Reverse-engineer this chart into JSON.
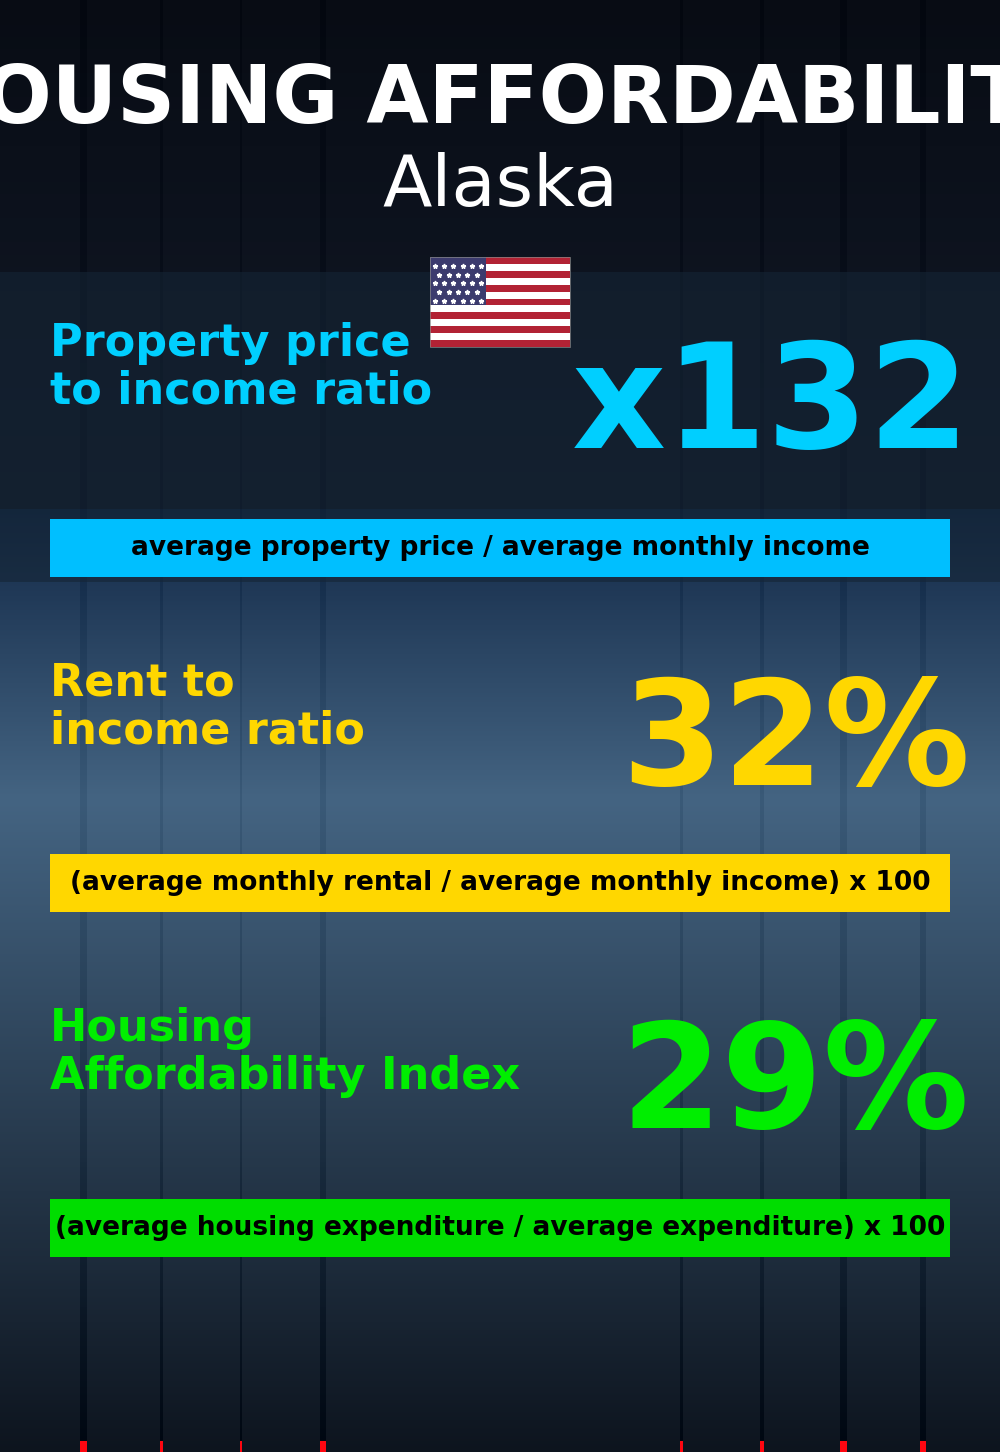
{
  "title_line1": "HOUSING AFFORDABILITY",
  "title_line2": "Alaska",
  "section1_label_line1": "Property price",
  "section1_label_line2": "to income ratio",
  "section1_value": "x132",
  "section1_label_color": "#00CFFF",
  "section1_value_color": "#00CFFF",
  "section1_banner_text": "average property price / average monthly income",
  "section1_banner_bg": "#00BFFF",
  "section2_label_line1": "Rent to",
  "section2_label_line2": "income ratio",
  "section2_value": "32%",
  "section2_label_color": "#FFD700",
  "section2_value_color": "#FFD700",
  "section2_banner_text": "(average monthly rental / average monthly income) x 100",
  "section2_banner_bg": "#FFD700",
  "section3_label_line1": "Housing",
  "section3_label_line2": "Affordability Index",
  "section3_value": "29%",
  "section3_label_color": "#00EE00",
  "section3_value_color": "#00EE00",
  "section3_banner_text": "(average housing expenditure / average expenditure) x 100",
  "section3_banner_bg": "#00DD00",
  "bg_color": "#0a1520",
  "title_color": "#FFFFFF",
  "banner_text_color": "#000000",
  "overlay_color": "#152535",
  "overlay_alpha": 0.6
}
